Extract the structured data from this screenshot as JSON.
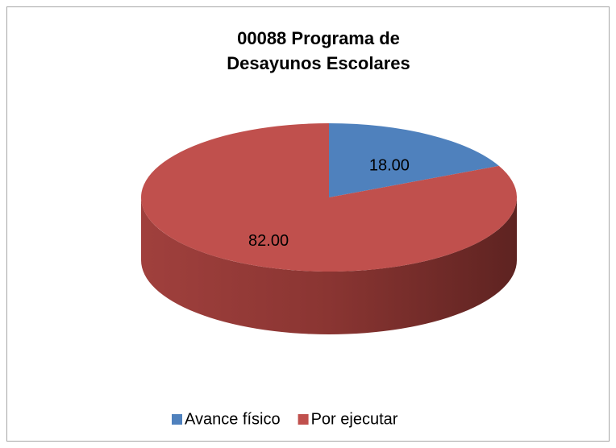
{
  "chart_data": {
    "type": "pie",
    "title": [
      "00088 Programa de",
      "Desayunos Escolares"
    ],
    "categories": [
      "Avance físico",
      "Por ejecutar"
    ],
    "values": [
      18,
      82
    ],
    "value_labels": [
      "18.00",
      "82.00"
    ],
    "colors": [
      "#4f81bd",
      "#c0504d"
    ],
    "legend": "bottom"
  }
}
